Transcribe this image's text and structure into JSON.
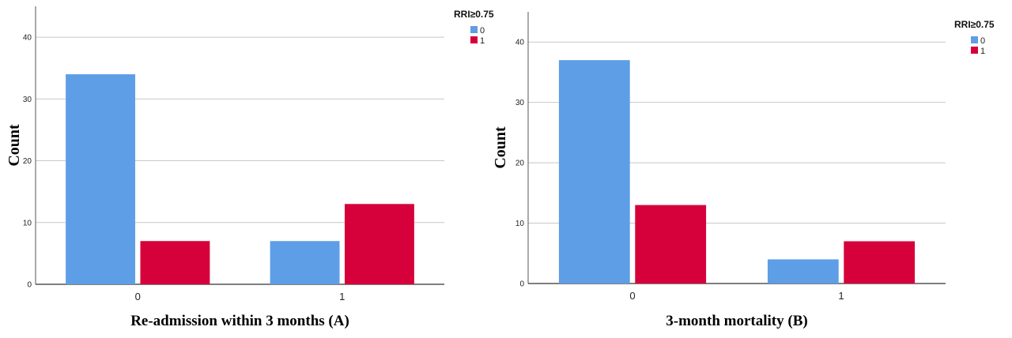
{
  "chart_data": [
    {
      "type": "bar",
      "xlabel": "Re-admission within 3 months (A)",
      "ylabel": "Count",
      "categories": [
        "0",
        "1"
      ],
      "ylim": [
        0,
        45
      ],
      "yticks": [
        0,
        10,
        20,
        30,
        40
      ],
      "grid": true,
      "legend": {
        "title": "RRI≥0.75",
        "placement": "top-right"
      },
      "series": [
        {
          "name": "0",
          "color": "#5e9ee6",
          "values": [
            34,
            7
          ]
        },
        {
          "name": "1",
          "color": "#d6003a",
          "values": [
            7,
            13
          ]
        }
      ]
    },
    {
      "type": "bar",
      "xlabel": "3-month mortality (B)",
      "ylabel": "Count",
      "categories": [
        "0",
        "1"
      ],
      "ylim": [
        0,
        45
      ],
      "yticks": [
        0,
        10,
        20,
        30,
        40
      ],
      "grid": true,
      "legend": {
        "title": "RRI≥0.75",
        "placement": "top-right"
      },
      "series": [
        {
          "name": "0",
          "color": "#5e9ee6",
          "values": [
            37,
            4
          ]
        },
        {
          "name": "1",
          "color": "#d6003a",
          "values": [
            13,
            7
          ]
        }
      ]
    }
  ]
}
